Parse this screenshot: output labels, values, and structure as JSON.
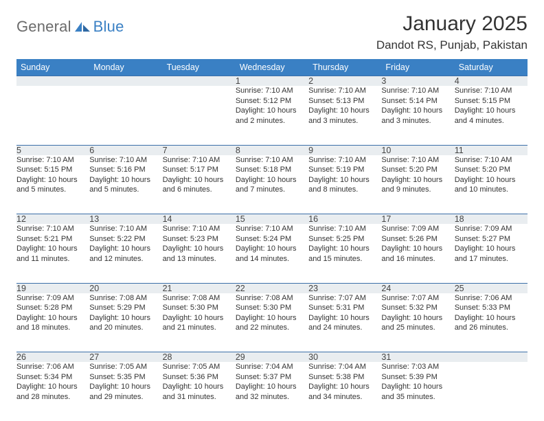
{
  "logo": {
    "word1": "General",
    "word2": "Blue"
  },
  "header": {
    "title": "January 2025",
    "location": "Dandot RS, Punjab, Pakistan"
  },
  "colors": {
    "header_bg": "#3a80c4",
    "header_text": "#ffffff",
    "daynum_bg": "#e9edf0",
    "row_border": "#3a6ea8",
    "title_color": "#333333",
    "logo_gray": "#6b6b6b",
    "logo_blue": "#3a80c4",
    "body_text": "#333333",
    "page_bg": "#ffffff"
  },
  "typography": {
    "title_fontsize": 30,
    "location_fontsize": 17,
    "dayheader_fontsize": 12.5,
    "daynum_fontsize": 12.5,
    "detail_fontsize": 11,
    "logo_fontsize": 22
  },
  "calendar": {
    "day_headers": [
      "Sunday",
      "Monday",
      "Tuesday",
      "Wednesday",
      "Thursday",
      "Friday",
      "Saturday"
    ],
    "weeks": [
      [
        null,
        null,
        null,
        {
          "n": "1",
          "sunrise": "Sunrise: 7:10 AM",
          "sunset": "Sunset: 5:12 PM",
          "daylight": "Daylight: 10 hours and 2 minutes."
        },
        {
          "n": "2",
          "sunrise": "Sunrise: 7:10 AM",
          "sunset": "Sunset: 5:13 PM",
          "daylight": "Daylight: 10 hours and 3 minutes."
        },
        {
          "n": "3",
          "sunrise": "Sunrise: 7:10 AM",
          "sunset": "Sunset: 5:14 PM",
          "daylight": "Daylight: 10 hours and 3 minutes."
        },
        {
          "n": "4",
          "sunrise": "Sunrise: 7:10 AM",
          "sunset": "Sunset: 5:15 PM",
          "daylight": "Daylight: 10 hours and 4 minutes."
        }
      ],
      [
        {
          "n": "5",
          "sunrise": "Sunrise: 7:10 AM",
          "sunset": "Sunset: 5:15 PM",
          "daylight": "Daylight: 10 hours and 5 minutes."
        },
        {
          "n": "6",
          "sunrise": "Sunrise: 7:10 AM",
          "sunset": "Sunset: 5:16 PM",
          "daylight": "Daylight: 10 hours and 5 minutes."
        },
        {
          "n": "7",
          "sunrise": "Sunrise: 7:10 AM",
          "sunset": "Sunset: 5:17 PM",
          "daylight": "Daylight: 10 hours and 6 minutes."
        },
        {
          "n": "8",
          "sunrise": "Sunrise: 7:10 AM",
          "sunset": "Sunset: 5:18 PM",
          "daylight": "Daylight: 10 hours and 7 minutes."
        },
        {
          "n": "9",
          "sunrise": "Sunrise: 7:10 AM",
          "sunset": "Sunset: 5:19 PM",
          "daylight": "Daylight: 10 hours and 8 minutes."
        },
        {
          "n": "10",
          "sunrise": "Sunrise: 7:10 AM",
          "sunset": "Sunset: 5:20 PM",
          "daylight": "Daylight: 10 hours and 9 minutes."
        },
        {
          "n": "11",
          "sunrise": "Sunrise: 7:10 AM",
          "sunset": "Sunset: 5:20 PM",
          "daylight": "Daylight: 10 hours and 10 minutes."
        }
      ],
      [
        {
          "n": "12",
          "sunrise": "Sunrise: 7:10 AM",
          "sunset": "Sunset: 5:21 PM",
          "daylight": "Daylight: 10 hours and 11 minutes."
        },
        {
          "n": "13",
          "sunrise": "Sunrise: 7:10 AM",
          "sunset": "Sunset: 5:22 PM",
          "daylight": "Daylight: 10 hours and 12 minutes."
        },
        {
          "n": "14",
          "sunrise": "Sunrise: 7:10 AM",
          "sunset": "Sunset: 5:23 PM",
          "daylight": "Daylight: 10 hours and 13 minutes."
        },
        {
          "n": "15",
          "sunrise": "Sunrise: 7:10 AM",
          "sunset": "Sunset: 5:24 PM",
          "daylight": "Daylight: 10 hours and 14 minutes."
        },
        {
          "n": "16",
          "sunrise": "Sunrise: 7:10 AM",
          "sunset": "Sunset: 5:25 PM",
          "daylight": "Daylight: 10 hours and 15 minutes."
        },
        {
          "n": "17",
          "sunrise": "Sunrise: 7:09 AM",
          "sunset": "Sunset: 5:26 PM",
          "daylight": "Daylight: 10 hours and 16 minutes."
        },
        {
          "n": "18",
          "sunrise": "Sunrise: 7:09 AM",
          "sunset": "Sunset: 5:27 PM",
          "daylight": "Daylight: 10 hours and 17 minutes."
        }
      ],
      [
        {
          "n": "19",
          "sunrise": "Sunrise: 7:09 AM",
          "sunset": "Sunset: 5:28 PM",
          "daylight": "Daylight: 10 hours and 18 minutes."
        },
        {
          "n": "20",
          "sunrise": "Sunrise: 7:08 AM",
          "sunset": "Sunset: 5:29 PM",
          "daylight": "Daylight: 10 hours and 20 minutes."
        },
        {
          "n": "21",
          "sunrise": "Sunrise: 7:08 AM",
          "sunset": "Sunset: 5:30 PM",
          "daylight": "Daylight: 10 hours and 21 minutes."
        },
        {
          "n": "22",
          "sunrise": "Sunrise: 7:08 AM",
          "sunset": "Sunset: 5:30 PM",
          "daylight": "Daylight: 10 hours and 22 minutes."
        },
        {
          "n": "23",
          "sunrise": "Sunrise: 7:07 AM",
          "sunset": "Sunset: 5:31 PM",
          "daylight": "Daylight: 10 hours and 24 minutes."
        },
        {
          "n": "24",
          "sunrise": "Sunrise: 7:07 AM",
          "sunset": "Sunset: 5:32 PM",
          "daylight": "Daylight: 10 hours and 25 minutes."
        },
        {
          "n": "25",
          "sunrise": "Sunrise: 7:06 AM",
          "sunset": "Sunset: 5:33 PM",
          "daylight": "Daylight: 10 hours and 26 minutes."
        }
      ],
      [
        {
          "n": "26",
          "sunrise": "Sunrise: 7:06 AM",
          "sunset": "Sunset: 5:34 PM",
          "daylight": "Daylight: 10 hours and 28 minutes."
        },
        {
          "n": "27",
          "sunrise": "Sunrise: 7:05 AM",
          "sunset": "Sunset: 5:35 PM",
          "daylight": "Daylight: 10 hours and 29 minutes."
        },
        {
          "n": "28",
          "sunrise": "Sunrise: 7:05 AM",
          "sunset": "Sunset: 5:36 PM",
          "daylight": "Daylight: 10 hours and 31 minutes."
        },
        {
          "n": "29",
          "sunrise": "Sunrise: 7:04 AM",
          "sunset": "Sunset: 5:37 PM",
          "daylight": "Daylight: 10 hours and 32 minutes."
        },
        {
          "n": "30",
          "sunrise": "Sunrise: 7:04 AM",
          "sunset": "Sunset: 5:38 PM",
          "daylight": "Daylight: 10 hours and 34 minutes."
        },
        {
          "n": "31",
          "sunrise": "Sunrise: 7:03 AM",
          "sunset": "Sunset: 5:39 PM",
          "daylight": "Daylight: 10 hours and 35 minutes."
        },
        null
      ]
    ]
  }
}
